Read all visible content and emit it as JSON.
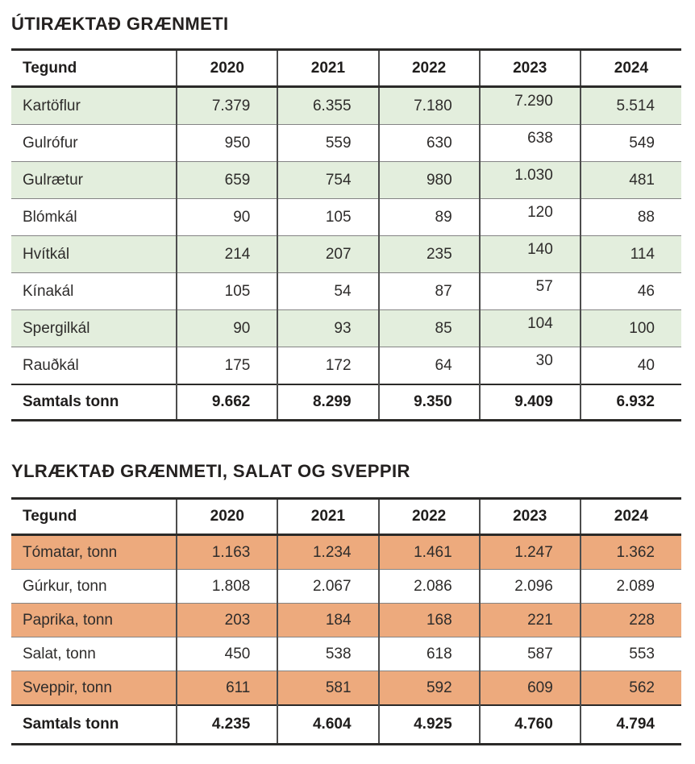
{
  "colors": {
    "table1_stripe": "#e3eedd",
    "table2_stripe": "#edaa7d",
    "border_thick": "#2b2a28",
    "border_thin": "#848484",
    "column_separator": "#4d4d4d",
    "text": "#2e2c2b"
  },
  "tables": [
    {
      "title": "ÚTIRÆKTAÐ GRÆNMETI",
      "stripe_color": "#e3eedd",
      "columns": [
        "Tegund",
        "2020",
        "2021",
        "2022",
        "2023",
        "2024"
      ],
      "rows": [
        {
          "label": "Kartöflur",
          "values": [
            "7.379",
            "6.355",
            "7.180",
            "7.290",
            "5.514"
          ]
        },
        {
          "label": "Gulrófur",
          "values": [
            "950",
            "559",
            "630",
            "638",
            "549"
          ]
        },
        {
          "label": "Gulrætur",
          "values": [
            "659",
            "754",
            "980",
            "1.030",
            "481"
          ]
        },
        {
          "label": "Blómkál",
          "values": [
            "90",
            "105",
            "89",
            "120",
            "88"
          ]
        },
        {
          "label": "Hvítkál",
          "values": [
            "214",
            "207",
            "235",
            "140",
            "114"
          ]
        },
        {
          "label": "Kínakál",
          "values": [
            "105",
            "54",
            "87",
            "57",
            "46"
          ]
        },
        {
          "label": "Spergilkál",
          "values": [
            "90",
            "93",
            "85",
            "104",
            "100"
          ]
        },
        {
          "label": "Rauðkál",
          "values": [
            "175",
            "172",
            "64",
            "30",
            "40"
          ]
        }
      ],
      "totals": {
        "label": "Samtals tonn",
        "values": [
          "9.662",
          "8.299",
          "9.350",
          "9.409",
          "6.932"
        ]
      }
    },
    {
      "title": "YLRÆKTAÐ GRÆNMETI, SALAT OG SVEPPIR",
      "stripe_color": "#edaa7d",
      "columns": [
        "Tegund",
        "2020",
        "2021",
        "2022",
        "2023",
        "2024"
      ],
      "rows": [
        {
          "label": "Tómatar, tonn",
          "values": [
            "1.163",
            "1.234",
            "1.461",
            "1.247",
            "1.362"
          ]
        },
        {
          "label": "Gúrkur, tonn",
          "values": [
            "1.808",
            "2.067",
            "2.086",
            "2.096",
            "2.089"
          ]
        },
        {
          "label": "Paprika, tonn",
          "values": [
            "203",
            "184",
            "168",
            "221",
            "228"
          ]
        },
        {
          "label": "Salat, tonn",
          "values": [
            "450",
            "538",
            "618",
            "587",
            "553"
          ]
        },
        {
          "label": "Sveppir, tonn",
          "values": [
            "611",
            "581",
            "592",
            "609",
            "562"
          ]
        }
      ],
      "totals": {
        "label": "Samtals tonn",
        "values": [
          "4.235",
          "4.604",
          "4.925",
          "4.760",
          "4.794"
        ]
      }
    }
  ]
}
